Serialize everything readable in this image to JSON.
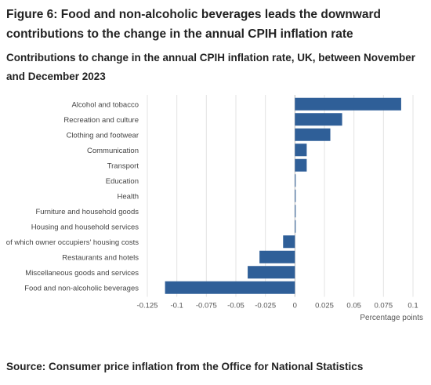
{
  "figure": {
    "title": "Figure 6: Food and non-alcoholic beverages leads the downward contributions to the change in the annual CPIH inflation rate",
    "subtitle": "Contributions to change in the annual CPIH inflation rate, UK, between November and December 2023",
    "source": "Source: Consumer price inflation from the Office for National Statistics"
  },
  "chart_data": {
    "type": "bar",
    "orientation": "horizontal",
    "categories": [
      "Alcohol and tobacco",
      "Recreation and culture",
      "Clothing and footwear",
      "Communication",
      "Transport",
      "Education",
      "Health",
      "Furniture and household goods",
      "Housing and household services",
      "of which owner occupiers' housing costs",
      "Restaurants and hotels",
      "Miscellaneous goods and services",
      "Food and non-alcoholic beverages"
    ],
    "values": [
      0.09,
      0.04,
      0.03,
      0.01,
      0.01,
      0.0,
      0.0,
      0.0,
      0.0,
      -0.01,
      -0.03,
      -0.04,
      -0.11
    ],
    "xlabel": "Percentage points",
    "xlim": [
      -0.125,
      0.1
    ],
    "xticks": [
      -0.125,
      -0.1,
      -0.075,
      -0.05,
      -0.025,
      0,
      0.025,
      0.05,
      0.075,
      0.1
    ],
    "xtick_labels": [
      "-0.125",
      "-0.1",
      "-0.075",
      "-0.05",
      "-0.025",
      "0",
      "0.025",
      "0.05",
      "0.075",
      "0.1"
    ],
    "grid": true,
    "bar_color": "#2f5f98",
    "grid_color": "#e3e3e3",
    "axis_color": "#bbbbbb"
  }
}
